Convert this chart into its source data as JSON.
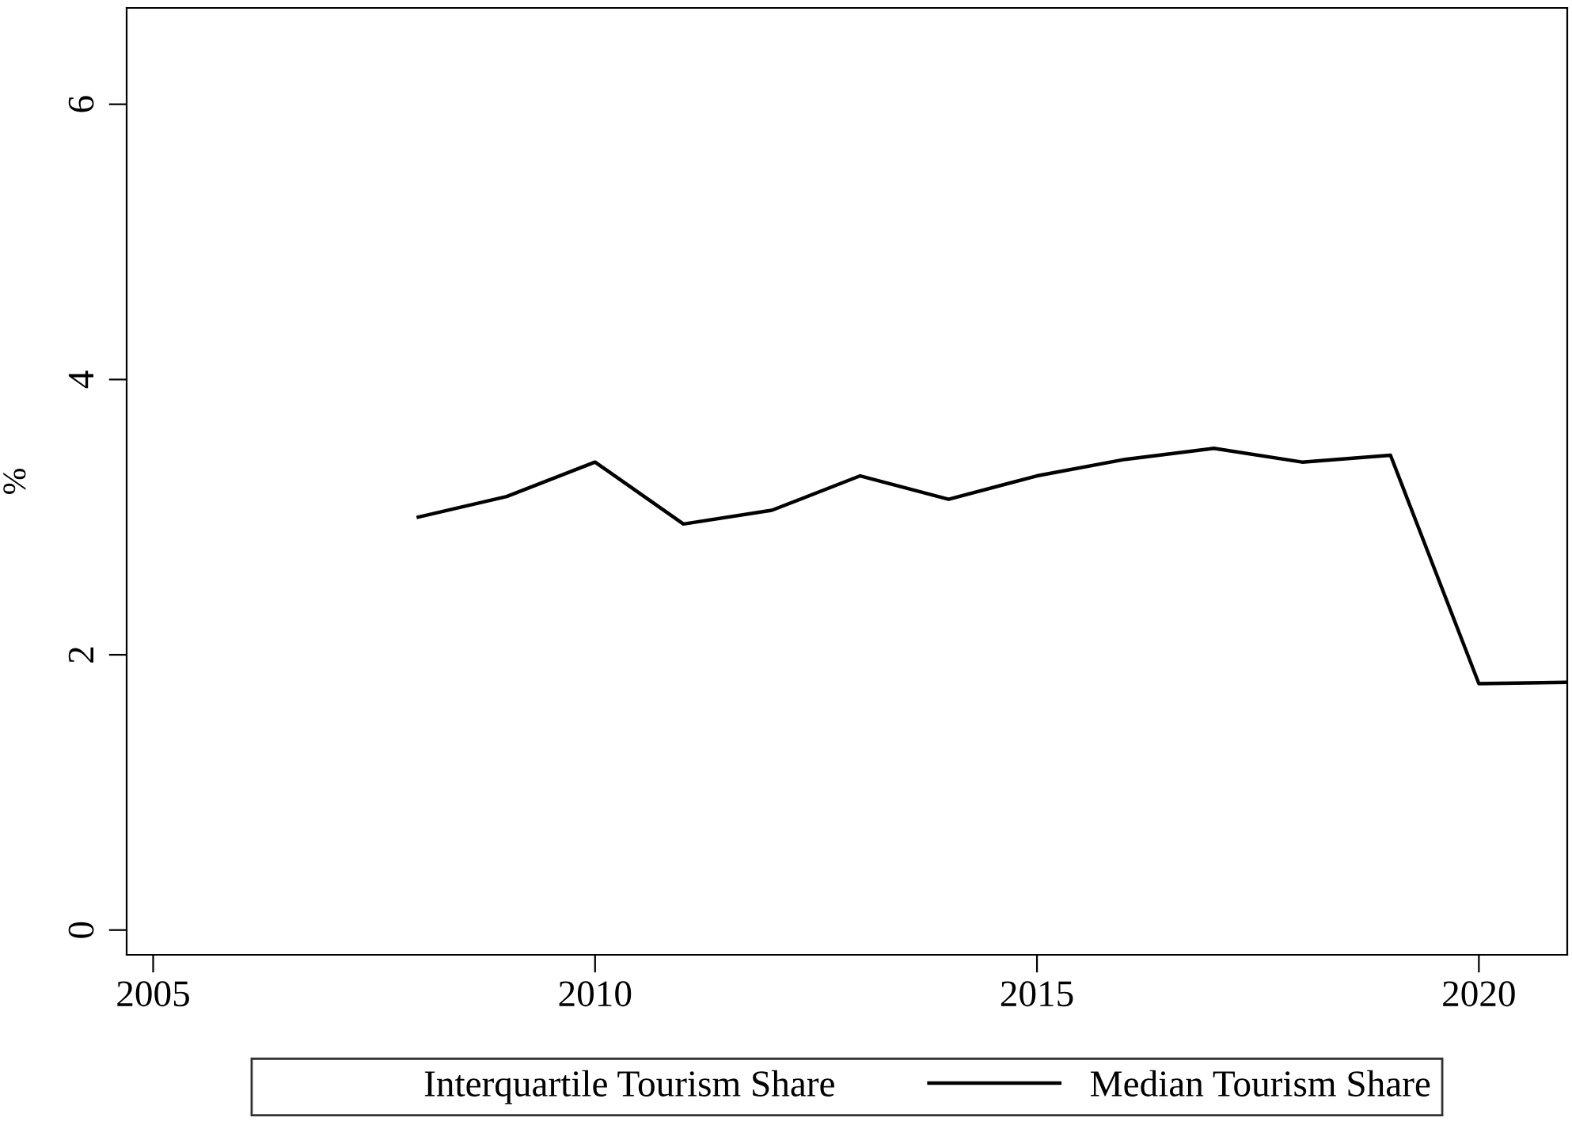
{
  "chart_data": {
    "type": "line",
    "ylabel": "%",
    "x": [
      2008,
      2009,
      2010,
      2011,
      2012,
      2013,
      2014,
      2015,
      2016,
      2017,
      2018,
      2019,
      2020,
      2021
    ],
    "series": [
      {
        "name": "Interquartile Tourism Share",
        "type": "area",
        "values": [
          null,
          null,
          null,
          null,
          null,
          null,
          null,
          null,
          null,
          null,
          null,
          null,
          null,
          null
        ]
      },
      {
        "name": "Median Tourism Share",
        "color": "#000000",
        "values": [
          3.0,
          3.15,
          3.4,
          2.95,
          3.05,
          3.3,
          3.13,
          3.3,
          3.42,
          3.5,
          3.4,
          3.45,
          1.79,
          1.8
        ]
      }
    ],
    "xlim": [
      2004.7,
      2021
    ],
    "xticks": [
      2005,
      2010,
      2015,
      2020
    ],
    "ylim": [
      -0.18,
      6.7
    ],
    "yticks": [
      0,
      2,
      4,
      6
    ],
    "grid": false,
    "legend": "bottom",
    "marker": "none",
    "line_style": "solid"
  }
}
